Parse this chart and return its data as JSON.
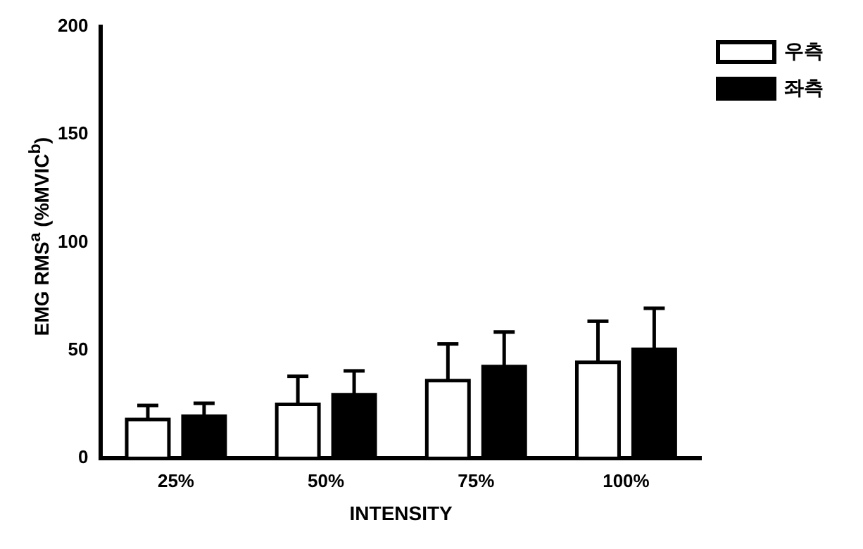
{
  "chart_data": {
    "type": "bar",
    "xlabel": "INTENSITY",
    "ylabel": "EMG RMS$^{a}$ (%MVIC$^{b}$)",
    "categories": [
      "25%",
      "50%",
      "75%",
      "100%"
    ],
    "series": [
      {
        "name": "우측",
        "color": "#ffffff",
        "values": [
          18,
          25,
          36,
          44.5
        ],
        "errors": [
          [
            18,
            24.5
          ],
          [
            25,
            38
          ],
          [
            36,
            53
          ],
          [
            44.5,
            63.5
          ]
        ]
      },
      {
        "name": "좌측",
        "color": "#000000",
        "values": [
          19.5,
          29.5,
          42.5,
          50.5
        ],
        "errors": [
          [
            19.5,
            25.5
          ],
          [
            29.5,
            40.5
          ],
          [
            42.5,
            58.5
          ],
          [
            50.5,
            69.5
          ]
        ]
      }
    ],
    "ylim": [
      0,
      200
    ],
    "yticks": [
      0,
      50,
      100,
      150,
      200
    ],
    "grid": false,
    "legend": "top right"
  }
}
